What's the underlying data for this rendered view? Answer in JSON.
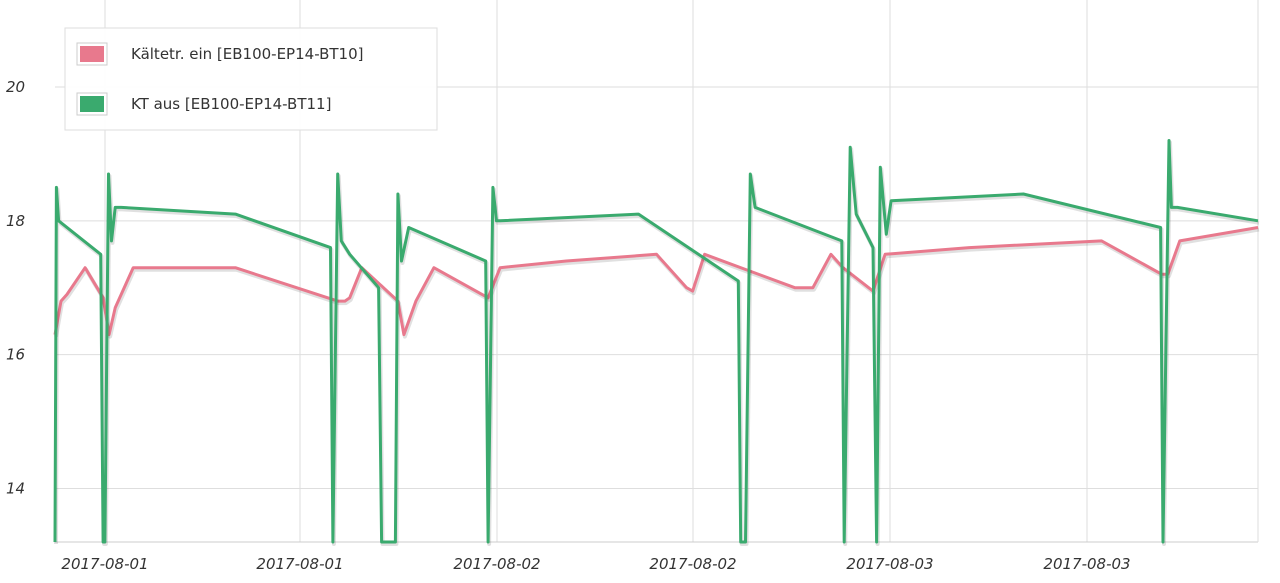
{
  "chart_data": {
    "type": "line",
    "title": "",
    "xlabel": "",
    "ylabel": "",
    "ylim": [
      13.2,
      21.3
    ],
    "grid": true,
    "legend_placement": "top-left",
    "x_tick_labels": [
      "2017-08-01",
      "2017-08-01",
      "2017-08-02",
      "2017-08-02",
      "2017-08-03",
      "2017-08-03"
    ],
    "y_ticks": [
      14,
      16,
      18,
      20
    ],
    "series": [
      {
        "name": "Kältetr. ein [EB100-EP14-BT10]",
        "color": "#e8798d",
        "x": [
          0.0,
          0.5,
          1.0,
          2.5,
          4.0,
          4.5,
          5.0,
          6.5,
          15.0,
          23.5,
          24.1,
          24.5,
          25.5,
          28.5,
          29.0,
          30.0,
          31.5,
          36.0,
          37.0,
          42.5,
          50.0,
          52.5,
          53.0,
          54.0,
          61.5,
          63.0,
          64.5,
          65.5,
          68.0,
          69.0,
          76.0,
          87.0,
          92.0,
          92.5,
          93.5,
          100.0
        ],
        "y": [
          16.3,
          16.8,
          16.9,
          17.3,
          16.85,
          16.3,
          16.7,
          17.3,
          17.3,
          16.8,
          16.8,
          16.85,
          17.3,
          16.8,
          16.3,
          16.8,
          17.3,
          16.85,
          17.3,
          17.4,
          17.5,
          17.0,
          16.95,
          17.5,
          17.0,
          17.0,
          17.5,
          17.3,
          16.95,
          17.5,
          17.6,
          17.7,
          17.2,
          17.2,
          17.7,
          17.9
        ]
      },
      {
        "name": "KT aus [EB100-EP14-BT11]",
        "color": "#3aaa6e",
        "x": [
          0.0,
          0.12,
          0.3,
          3.8,
          4.0,
          4.15,
          4.45,
          4.7,
          5.0,
          5.5,
          15.0,
          22.9,
          23.1,
          23.5,
          23.8,
          24.5,
          26.9,
          27.15,
          28.3,
          28.5,
          28.8,
          29.4,
          35.8,
          36.0,
          36.4,
          36.7,
          37.0,
          48.5,
          56.8,
          57.0,
          57.4,
          57.8,
          58.2,
          65.4,
          65.6,
          66.1,
          66.6,
          68.0,
          68.3,
          68.6,
          69.1,
          69.5,
          80.5,
          91.9,
          92.1,
          92.6,
          92.8,
          93.3,
          100.0
        ],
        "y": [
          13.2,
          18.5,
          18.0,
          17.5,
          13.2,
          13.2,
          18.7,
          17.7,
          18.2,
          18.2,
          18.1,
          17.6,
          13.2,
          18.7,
          17.7,
          17.5,
          17.0,
          13.2,
          13.2,
          18.4,
          17.4,
          17.9,
          17.4,
          13.2,
          18.5,
          18.0,
          18.0,
          18.1,
          17.1,
          13.2,
          13.2,
          18.7,
          18.2,
          17.7,
          13.2,
          19.1,
          18.1,
          17.6,
          13.2,
          18.8,
          17.8,
          18.3,
          18.4,
          17.9,
          13.2,
          19.2,
          18.2,
          18.2,
          18.0
        ]
      }
    ]
  }
}
